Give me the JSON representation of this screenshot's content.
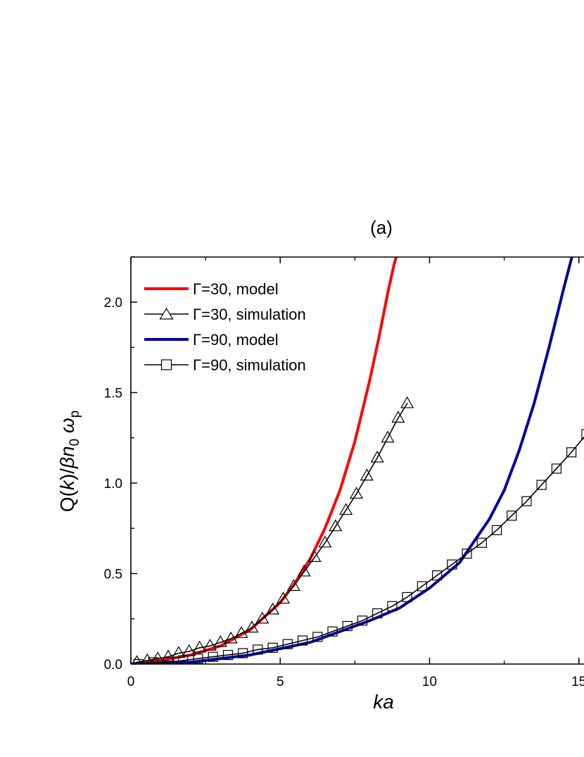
{
  "chart_data": {
    "type": "line",
    "title": "(a)",
    "xlabel": "ka",
    "ylabel": "Q(k)/βn0 ωp",
    "xlim": [
      0,
      15.2
    ],
    "ylim": [
      0,
      2.25
    ],
    "x_ticks": [
      0,
      5,
      10,
      15
    ],
    "x_tick_labels": [
      "0",
      "5",
      "10",
      "15"
    ],
    "y_ticks": [
      0,
      0.5,
      1.0,
      1.5,
      2.0
    ],
    "y_tick_labels": [
      "0.0",
      "0.5",
      "1.0",
      "1.5",
      "2.0"
    ],
    "grid": false,
    "legend_position": "top-left",
    "series": [
      {
        "name": "Γ=30, model",
        "color": "#ff0000",
        "marker": "none",
        "x": [
          0,
          1,
          2,
          3,
          4,
          5,
          5.5,
          6,
          6.5,
          7,
          7.5,
          8,
          8.3,
          8.6,
          8.8,
          8.9
        ],
        "y": [
          0,
          0.02,
          0.05,
          0.1,
          0.19,
          0.34,
          0.45,
          0.58,
          0.75,
          0.96,
          1.23,
          1.57,
          1.8,
          2.05,
          2.2,
          2.26
        ]
      },
      {
        "name": "Γ=30, simulation",
        "color": "#000000",
        "marker": "triangle",
        "x": [
          0.2,
          0.55,
          0.9,
          1.25,
          1.6,
          1.95,
          2.3,
          2.65,
          3.0,
          3.35,
          3.7,
          4.05,
          4.4,
          4.75,
          5.1,
          5.45,
          5.8,
          6.15,
          6.5,
          6.85,
          7.2,
          7.55,
          7.9,
          8.25,
          8.6,
          8.95,
          9.25
        ],
        "y": [
          0.01,
          0.02,
          0.03,
          0.04,
          0.06,
          0.07,
          0.09,
          0.1,
          0.12,
          0.14,
          0.17,
          0.2,
          0.25,
          0.3,
          0.36,
          0.43,
          0.51,
          0.59,
          0.67,
          0.76,
          0.85,
          0.94,
          1.04,
          1.14,
          1.25,
          1.36,
          1.44
        ]
      },
      {
        "name": "Γ=90, model",
        "color": "#0000a0",
        "marker": "none",
        "x": [
          0,
          2,
          4,
          6,
          8,
          9,
          10,
          11,
          12,
          12.5,
          13,
          13.5,
          14,
          14.5,
          15,
          15.2
        ],
        "y": [
          0,
          0.01,
          0.05,
          0.12,
          0.24,
          0.31,
          0.42,
          0.56,
          0.8,
          0.96,
          1.18,
          1.44,
          1.75,
          2.08,
          2.4,
          2.55
        ]
      },
      {
        "name": "Γ=90, simulation",
        "color": "#000000",
        "marker": "square",
        "x": [
          0.25,
          0.75,
          1.25,
          1.75,
          2.25,
          2.75,
          3.25,
          3.75,
          4.25,
          4.75,
          5.25,
          5.75,
          6.25,
          6.75,
          7.25,
          7.75,
          8.25,
          8.75,
          9.25,
          9.75,
          10.25,
          10.75,
          11.25,
          11.75,
          12.25,
          12.75,
          13.25,
          13.75,
          14.25,
          14.75,
          15.25
        ],
        "y": [
          0.0,
          0.01,
          0.01,
          0.02,
          0.03,
          0.04,
          0.05,
          0.06,
          0.08,
          0.09,
          0.11,
          0.13,
          0.15,
          0.18,
          0.21,
          0.24,
          0.28,
          0.32,
          0.37,
          0.43,
          0.49,
          0.55,
          0.61,
          0.67,
          0.74,
          0.82,
          0.9,
          0.99,
          1.08,
          1.17,
          1.27
        ]
      }
    ]
  }
}
